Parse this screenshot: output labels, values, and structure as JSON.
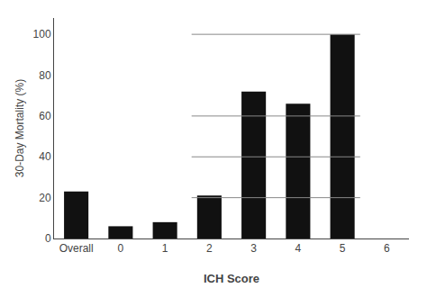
{
  "chart_data": {
    "type": "bar",
    "categories": [
      "Overall",
      "0",
      "1",
      "2",
      "3",
      "4",
      "5",
      "6"
    ],
    "values": [
      23,
      6,
      8,
      21,
      72,
      66,
      100,
      0
    ],
    "color": "#111111",
    "xlabel": "ICH Score",
    "ylabel": "30-Day Mortality (%)",
    "ylim": [
      0,
      108
    ],
    "yticks": [
      0,
      20,
      40,
      60,
      80,
      100
    ],
    "grid": false,
    "hlines": [
      {
        "y": 20,
        "from": "2",
        "to": "5",
        "color": "#888888"
      },
      {
        "y": 40,
        "from": "2",
        "to": "5",
        "color": "#888888"
      },
      {
        "y": 60,
        "from": "2",
        "to": "5",
        "color": "#888888"
      },
      {
        "y": 100,
        "from": "2",
        "to": "5",
        "color": "#888888"
      }
    ]
  }
}
